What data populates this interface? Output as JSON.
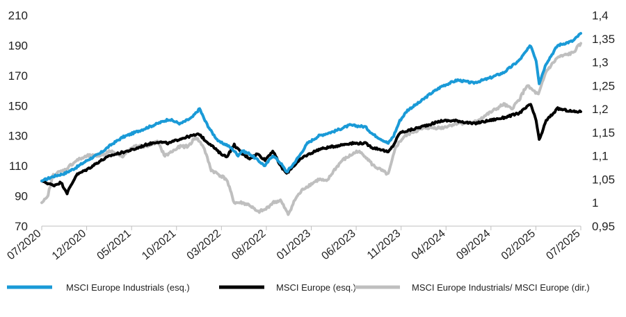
{
  "chart_data": {
    "type": "line",
    "title": "",
    "legend_placement": "bottom",
    "grid": false,
    "y_left": {
      "ticks": [
        "70",
        "90",
        "110",
        "130",
        "150",
        "170",
        "190",
        "210"
      ],
      "range": [
        70,
        210
      ]
    },
    "y_right": {
      "ticks": [
        "0,95",
        "1",
        "1,05",
        "1,1",
        "1,15",
        "1,2",
        "1,25",
        "1,3",
        "1,35",
        "1,4"
      ],
      "range": [
        0.95,
        1.4
      ]
    },
    "x_ticks": [
      "07/2020",
      "12/2020",
      "05/2021",
      "10/2021",
      "03/2022",
      "08/2022",
      "01/2023",
      "06/2023",
      "11/2023",
      "04/2024",
      "09/2024",
      "02/2025",
      "07/2025"
    ],
    "series": [
      {
        "name": "MSCI Europe Industrials (esq.)",
        "axis": "left",
        "color": "#1a9ad7",
        "values": [
          [
            0,
            100
          ],
          [
            1.5,
            103
          ],
          [
            3,
            105
          ],
          [
            4.5,
            109
          ],
          [
            6,
            114
          ],
          [
            7.5,
            118
          ],
          [
            9,
            124
          ],
          [
            10.5,
            129
          ],
          [
            12,
            132
          ],
          [
            13.5,
            135
          ],
          [
            15,
            138
          ],
          [
            16.5,
            141
          ],
          [
            18,
            138
          ],
          [
            19.5,
            142
          ],
          [
            20.5,
            148
          ],
          [
            21.2,
            140
          ],
          [
            22,
            133
          ],
          [
            23,
            126
          ],
          [
            24,
            124
          ],
          [
            24.8,
            121
          ],
          [
            25.5,
            117
          ],
          [
            26,
            120
          ],
          [
            27,
            118
          ],
          [
            28,
            114
          ],
          [
            29,
            110
          ],
          [
            30,
            117
          ],
          [
            31,
            112
          ],
          [
            31.8,
            106
          ],
          [
            32.5,
            110
          ],
          [
            33.5,
            117
          ],
          [
            34.5,
            125
          ],
          [
            36,
            130
          ],
          [
            38,
            133
          ],
          [
            40,
            137
          ],
          [
            42,
            136
          ],
          [
            43,
            131
          ],
          [
            44,
            128
          ],
          [
            45,
            125
          ],
          [
            45.7,
            130
          ],
          [
            46.5,
            140
          ],
          [
            47.5,
            147
          ],
          [
            49,
            152
          ],
          [
            50.5,
            158
          ],
          [
            52,
            163
          ],
          [
            54,
            167
          ],
          [
            56,
            165
          ],
          [
            58,
            168
          ],
          [
            60,
            172
          ],
          [
            62,
            180
          ],
          [
            63.5,
            190
          ],
          [
            64.2,
            180
          ],
          [
            64.6,
            165
          ],
          [
            65.5,
            178
          ],
          [
            67,
            190
          ],
          [
            69,
            193
          ],
          [
            70,
            198
          ]
        ]
      },
      {
        "name": "MSCI Europe (esq.)",
        "axis": "left",
        "color": "#000000",
        "values": [
          [
            0,
            100
          ],
          [
            1.5,
            97
          ],
          [
            2.5,
            99
          ],
          [
            3.3,
            92
          ],
          [
            4.5,
            104
          ],
          [
            6,
            108
          ],
          [
            7.5,
            113
          ],
          [
            9,
            117
          ],
          [
            10.5,
            119
          ],
          [
            12,
            121
          ],
          [
            13.5,
            124
          ],
          [
            15,
            126
          ],
          [
            16.5,
            125
          ],
          [
            18,
            128
          ],
          [
            19.5,
            130
          ],
          [
            20.5,
            131
          ],
          [
            21.2,
            127
          ],
          [
            22,
            124
          ],
          [
            23,
            119
          ],
          [
            24,
            116
          ],
          [
            25,
            124
          ],
          [
            26,
            118
          ],
          [
            27,
            115
          ],
          [
            28,
            118
          ],
          [
            29,
            114
          ],
          [
            30,
            120
          ],
          [
            31,
            110
          ],
          [
            31.8,
            105
          ],
          [
            32.5,
            109
          ],
          [
            34,
            116
          ],
          [
            36,
            121
          ],
          [
            38,
            123
          ],
          [
            40,
            125
          ],
          [
            42,
            125
          ],
          [
            43,
            122
          ],
          [
            44,
            121
          ],
          [
            45,
            119
          ],
          [
            45.7,
            124
          ],
          [
            46.5,
            132
          ],
          [
            48,
            134
          ],
          [
            50,
            137
          ],
          [
            52,
            140
          ],
          [
            54,
            140
          ],
          [
            56,
            138
          ],
          [
            58,
            140
          ],
          [
            60,
            142
          ],
          [
            62,
            145
          ],
          [
            63.5,
            151
          ],
          [
            64.2,
            140
          ],
          [
            64.6,
            127
          ],
          [
            65.5,
            140
          ],
          [
            67,
            148
          ],
          [
            69,
            146
          ],
          [
            70,
            146
          ]
        ]
      },
      {
        "name": "MSCI Europe Industrials/ MSCI Europe (dir.)",
        "axis": "right",
        "color": "#bfbfbf",
        "values": [
          [
            0,
            1.0
          ],
          [
            0.7,
            1.01
          ],
          [
            1.5,
            1.06
          ],
          [
            3,
            1.07
          ],
          [
            4.5,
            1.09
          ],
          [
            6,
            1.1
          ],
          [
            7.5,
            1.1
          ],
          [
            9,
            1.11
          ],
          [
            10.5,
            1.1
          ],
          [
            12,
            1.12
          ],
          [
            13.5,
            1.12
          ],
          [
            15,
            1.13
          ],
          [
            16,
            1.1
          ],
          [
            17,
            1.11
          ],
          [
            18,
            1.12
          ],
          [
            19,
            1.12
          ],
          [
            20,
            1.14
          ],
          [
            21,
            1.12
          ],
          [
            22,
            1.07
          ],
          [
            23,
            1.06
          ],
          [
            24,
            1.05
          ],
          [
            25,
            1.0
          ],
          [
            26,
            1.0
          ],
          [
            27,
            0.995
          ],
          [
            28,
            0.98
          ],
          [
            29,
            0.985
          ],
          [
            30,
            1.0
          ],
          [
            31,
            1.005
          ],
          [
            32,
            0.975
          ],
          [
            33,
            1.01
          ],
          [
            34,
            1.03
          ],
          [
            35,
            1.04
          ],
          [
            36,
            1.05
          ],
          [
            37,
            1.045
          ],
          [
            38,
            1.07
          ],
          [
            39,
            1.09
          ],
          [
            40,
            1.1
          ],
          [
            41,
            1.11
          ],
          [
            42,
            1.1
          ],
          [
            43,
            1.08
          ],
          [
            44,
            1.07
          ],
          [
            45,
            1.06
          ],
          [
            46,
            1.12
          ],
          [
            47,
            1.14
          ],
          [
            48,
            1.15
          ],
          [
            50,
            1.16
          ],
          [
            52,
            1.16
          ],
          [
            54,
            1.17
          ],
          [
            56,
            1.17
          ],
          [
            58,
            1.19
          ],
          [
            60,
            1.21
          ],
          [
            61,
            1.2
          ],
          [
            62,
            1.22
          ],
          [
            63,
            1.25
          ],
          [
            64.5,
            1.23
          ],
          [
            65.5,
            1.28
          ],
          [
            67,
            1.31
          ],
          [
            69,
            1.32
          ],
          [
            70,
            1.34
          ]
        ]
      }
    ]
  }
}
